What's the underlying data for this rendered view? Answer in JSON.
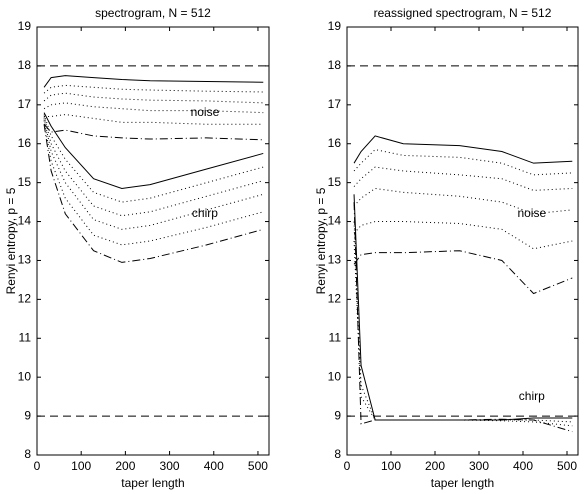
{
  "chart_data": [
    {
      "type": "line",
      "title": "spectrogram, N = 512",
      "xlabel": "taper length",
      "ylabel": "Renyi entropy, p = 5",
      "xlim": [
        0,
        525
      ],
      "ylim": [
        8,
        19
      ],
      "xticks": [
        0,
        100,
        200,
        300,
        400,
        500
      ],
      "yticks": [
        8,
        9,
        10,
        11,
        12,
        13,
        14,
        15,
        16,
        17,
        18,
        19
      ],
      "hlines": [
        18,
        9
      ],
      "annotations": [
        "noise",
        "chirp"
      ],
      "x": [
        16,
        32,
        64,
        128,
        192,
        256,
        384,
        512
      ],
      "series": [
        {
          "color": "#000000",
          "style": "solid",
          "values": [
            17.45,
            17.7,
            17.75,
            17.7,
            17.65,
            17.62,
            17.6,
            17.58
          ]
        },
        {
          "color": "#000000",
          "style": "dotted",
          "values": [
            17.3,
            17.45,
            17.5,
            17.45,
            17.4,
            17.38,
            17.35,
            17.33
          ]
        },
        {
          "color": "#000000",
          "style": "dotted",
          "values": [
            17.1,
            17.25,
            17.3,
            17.2,
            17.15,
            17.12,
            17.1,
            17.05
          ]
        },
        {
          "color": "#000000",
          "style": "dotted",
          "values": [
            16.9,
            17.0,
            17.05,
            16.95,
            16.9,
            16.85,
            16.85,
            16.8
          ]
        },
        {
          "color": "#000000",
          "style": "dotted",
          "values": [
            16.7,
            16.7,
            16.75,
            16.65,
            16.55,
            16.55,
            16.5,
            16.5
          ]
        },
        {
          "color": "#000000",
          "style": "dashdot",
          "values": [
            16.5,
            16.3,
            16.35,
            16.2,
            16.15,
            16.12,
            16.15,
            16.1
          ]
        },
        {
          "color": "#000000",
          "style": "solid",
          "values": [
            16.8,
            16.45,
            15.9,
            15.1,
            14.85,
            14.95,
            15.35,
            15.75
          ]
        },
        {
          "color": "#000000",
          "style": "dotted",
          "values": [
            16.75,
            16.2,
            15.6,
            14.75,
            14.5,
            14.6,
            15.0,
            15.4
          ]
        },
        {
          "color": "#000000",
          "style": "dotted",
          "values": [
            16.7,
            16.0,
            15.3,
            14.4,
            14.15,
            14.25,
            14.65,
            15.05
          ]
        },
        {
          "color": "#000000",
          "style": "dotted",
          "values": [
            16.65,
            15.8,
            15.0,
            14.05,
            13.8,
            13.9,
            14.3,
            14.7
          ]
        },
        {
          "color": "#000000",
          "style": "dotted",
          "values": [
            16.6,
            15.55,
            14.6,
            13.65,
            13.4,
            13.5,
            13.85,
            14.25
          ]
        },
        {
          "color": "#000000",
          "style": "dashdot",
          "values": [
            16.5,
            15.3,
            14.2,
            13.25,
            12.95,
            13.05,
            13.4,
            13.8
          ]
        }
      ]
    },
    {
      "type": "line",
      "title": "reassigned spectrogram, N = 512",
      "xlabel": "taper length",
      "ylabel": "Renyi entropy, p = 5",
      "xlim": [
        0,
        525
      ],
      "ylim": [
        8,
        19
      ],
      "xticks": [
        0,
        100,
        200,
        300,
        400,
        500
      ],
      "yticks": [
        8,
        9,
        10,
        11,
        12,
        13,
        14,
        15,
        16,
        17,
        18,
        19
      ],
      "hlines": [
        18,
        9
      ],
      "annotations": [
        "noise",
        "chirp"
      ],
      "x": [
        16,
        32,
        64,
        128,
        256,
        352,
        424,
        512
      ],
      "series": [
        {
          "color": "#000000",
          "style": "solid",
          "values": [
            15.5,
            15.8,
            16.2,
            16.0,
            15.95,
            15.8,
            15.5,
            15.55
          ]
        },
        {
          "color": "#000000",
          "style": "dotted",
          "values": [
            15.3,
            15.5,
            15.85,
            15.7,
            15.65,
            15.5,
            15.2,
            15.25
          ]
        },
        {
          "color": "#000000",
          "style": "dotted",
          "values": [
            14.9,
            15.1,
            15.4,
            15.3,
            15.2,
            15.1,
            14.8,
            14.85
          ]
        },
        {
          "color": "#000000",
          "style": "dotted",
          "values": [
            14.4,
            14.6,
            14.85,
            14.75,
            14.65,
            14.5,
            14.2,
            14.3
          ]
        },
        {
          "color": "#000000",
          "style": "dotted",
          "values": [
            13.7,
            13.9,
            14.0,
            14.0,
            13.95,
            13.8,
            13.3,
            13.5
          ]
        },
        {
          "color": "#000000",
          "style": "dashdot",
          "values": [
            12.9,
            13.15,
            13.2,
            13.2,
            13.25,
            13.0,
            12.15,
            12.55
          ]
        },
        {
          "color": "#000000",
          "style": "solid",
          "values": [
            14.7,
            10.3,
            8.9,
            8.9,
            8.9,
            8.9,
            8.95,
            8.95
          ]
        },
        {
          "color": "#000000",
          "style": "dotted",
          "values": [
            14.0,
            9.8,
            8.9,
            8.9,
            8.9,
            8.9,
            8.9,
            8.85
          ]
        },
        {
          "color": "#000000",
          "style": "dotted",
          "values": [
            13.5,
            9.5,
            8.9,
            8.9,
            8.9,
            8.88,
            8.85,
            8.75
          ]
        },
        {
          "color": "#000000",
          "style": "dashdot",
          "values": [
            14.5,
            8.8,
            8.9,
            8.9,
            8.9,
            8.92,
            8.9,
            8.6
          ]
        }
      ]
    }
  ]
}
